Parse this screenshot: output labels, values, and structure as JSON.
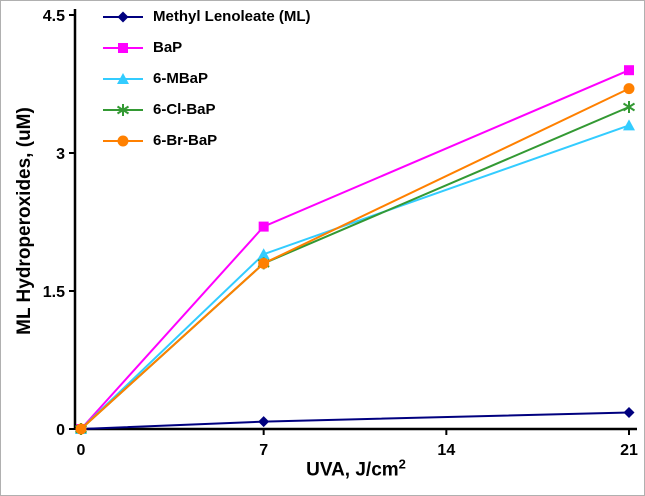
{
  "chart_data": {
    "type": "line",
    "title": "",
    "x": [
      0,
      7,
      21
    ],
    "x_ticks": [
      0,
      7,
      14,
      21
    ],
    "y_ticks": [
      0,
      1.5,
      3,
      4.5
    ],
    "xlim": [
      0,
      21
    ],
    "ylim": [
      0,
      4.5
    ],
    "grid": false,
    "legend_position": "top-left-inside",
    "xlabel": "UVA, J/cm^2",
    "xlabel_base": "UVA, J/cm",
    "xlabel_sup": "2",
    "ylabel": "ML Hydroperoxides, (uM)",
    "axis_color": "#000000",
    "background": "#FFFFFF",
    "series": [
      {
        "name": "Methyl Lenoleate (ML)",
        "marker": "diamond",
        "color": "#00007F",
        "values": [
          0,
          0.08,
          0.18
        ]
      },
      {
        "name": "BaP",
        "marker": "square",
        "color": "#FF00FF",
        "values": [
          0,
          2.2,
          3.9
        ]
      },
      {
        "name": "6-MBaP",
        "marker": "triangle",
        "color": "#33CCFF",
        "values": [
          0,
          1.9,
          3.3
        ]
      },
      {
        "name": "6-Cl-BaP",
        "marker": "asterisk",
        "color": "#339933",
        "values": [
          0,
          1.8,
          3.5
        ]
      },
      {
        "name": "6-Br-BaP",
        "marker": "circle",
        "color": "#FF8000",
        "values": [
          0,
          1.8,
          3.7
        ]
      }
    ]
  }
}
